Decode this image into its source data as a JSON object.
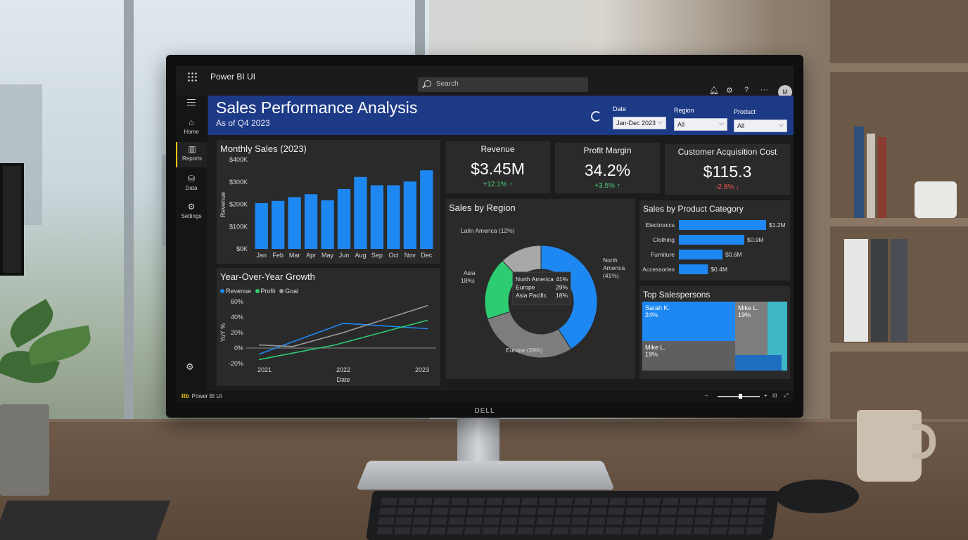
{
  "app": {
    "title": "Power BI UI",
    "search_placeholder": "Search",
    "avatar_initial": "M",
    "footer_brand_badge": "Rb",
    "footer_brand": "Power BI UI",
    "bezel_logo": "DELL"
  },
  "nav": {
    "items": [
      {
        "label": "Home",
        "icon": "home-icon"
      },
      {
        "label": "Reports",
        "icon": "reports-icon",
        "active": true
      },
      {
        "label": "Data",
        "icon": "data-icon"
      },
      {
        "label": "Settings",
        "icon": "settings-icon"
      }
    ]
  },
  "header": {
    "title": "Sales Performance Analysis",
    "subtitle": "As of Q4 2023",
    "filters": [
      {
        "label": "Date",
        "value": "Jan-Dec 2023"
      },
      {
        "label": "Region",
        "value": "All"
      },
      {
        "label": "Product",
        "value": "All"
      }
    ]
  },
  "kpis": [
    {
      "title": "Revenue",
      "value": "$3.45M",
      "delta": "+12.1% ↑",
      "trend": "up"
    },
    {
      "title": "Profit Margin",
      "value": "34.2%",
      "delta": "+3.5% ↑",
      "trend": "up"
    },
    {
      "title": "Customer Acquisition Cost",
      "value": "$115.3",
      "delta": "-2.8% ↓",
      "trend": "down"
    }
  ],
  "colors": {
    "accent_blue": "#1e88f2",
    "banner": "#1d3a86",
    "green": "#2ecc71",
    "grey": "#7d7d7d",
    "teal": "#3fb7c7"
  },
  "chart_data": [
    {
      "type": "bar",
      "title": "Monthly Sales (2023)",
      "ylabel": "Revenue",
      "categories": [
        "Jan",
        "Feb",
        "Mar",
        "Apr",
        "May",
        "Jun",
        "Aug",
        "Sep",
        "Oct",
        "Nov",
        "Dec"
      ],
      "values": [
        205,
        215,
        232,
        245,
        218,
        268,
        322,
        285,
        285,
        302,
        352
      ],
      "yticks": [
        "$0K",
        "$100K",
        "$200K",
        "$300K",
        "$400K"
      ],
      "ylim": [
        0,
        400
      ]
    },
    {
      "type": "line",
      "title": "Year-Over-Year Growth",
      "xlabel": "Date",
      "ylabel": "YoY %",
      "x": [
        "2021",
        "2022",
        "2023"
      ],
      "yticks": [
        "60%",
        "40%",
        "20%",
        "0%",
        "-20%"
      ],
      "ylim": [
        -20,
        60
      ],
      "series": [
        {
          "name": "Revenue",
          "color": "#1e88f2",
          "points": [
            [
              0,
              -8
            ],
            [
              0.5,
              32
            ],
            [
              1,
              25
            ]
          ]
        },
        {
          "name": "Profit",
          "color": "#2ecc71",
          "points": [
            [
              0,
              -15
            ],
            [
              0.45,
              4
            ],
            [
              1,
              36
            ]
          ]
        },
        {
          "name": "Goal",
          "color": "#9a9a9a",
          "points": [
            [
              0,
              4
            ],
            [
              0.2,
              2
            ],
            [
              0.5,
              20
            ],
            [
              1,
              55
            ]
          ]
        }
      ],
      "baseline": 0
    },
    {
      "type": "pie",
      "title": "Sales by Region",
      "slices": [
        {
          "label": "North America",
          "outer_label": "North America (41%)",
          "value": 41,
          "color": "#1e88f2"
        },
        {
          "label": "Europe",
          "outer_label": "Europe (29%)",
          "value": 29,
          "color": "#7d7d7d"
        },
        {
          "label": "Asia",
          "outer_label": "Asia 18%)",
          "value": 18,
          "color": "#2ecc71"
        },
        {
          "label": "Latin America",
          "outer_label": "Latin America (12%)",
          "value": 12,
          "color": "#a8a8a8"
        }
      ],
      "tooltip": [
        {
          "label": "North America",
          "value": "41%"
        },
        {
          "label": "Europe",
          "value": "29%"
        },
        {
          "label": "Asia Pacific",
          "value": "18%"
        }
      ]
    },
    {
      "type": "bar",
      "orientation": "horizontal",
      "title": "Sales by Product Category",
      "categories": [
        "Electronics",
        "Clothing",
        "Furniture",
        "Accessories"
      ],
      "values": [
        1.2,
        0.9,
        0.6,
        0.4
      ],
      "labels": [
        "$1.2M",
        "$0.9M",
        "$0.6M",
        "$0.4M"
      ]
    },
    {
      "type": "treemap",
      "title": "Top Salespersons",
      "tiles": [
        {
          "name": "Sarah K.",
          "pct": "24%",
          "color": "#1e88f2"
        },
        {
          "name": "Mike L.",
          "pct": "19%",
          "color": "#7d7d7d"
        },
        {
          "name": "Mike L.",
          "pct": "19%",
          "color": "#5f5f61"
        }
      ]
    }
  ]
}
